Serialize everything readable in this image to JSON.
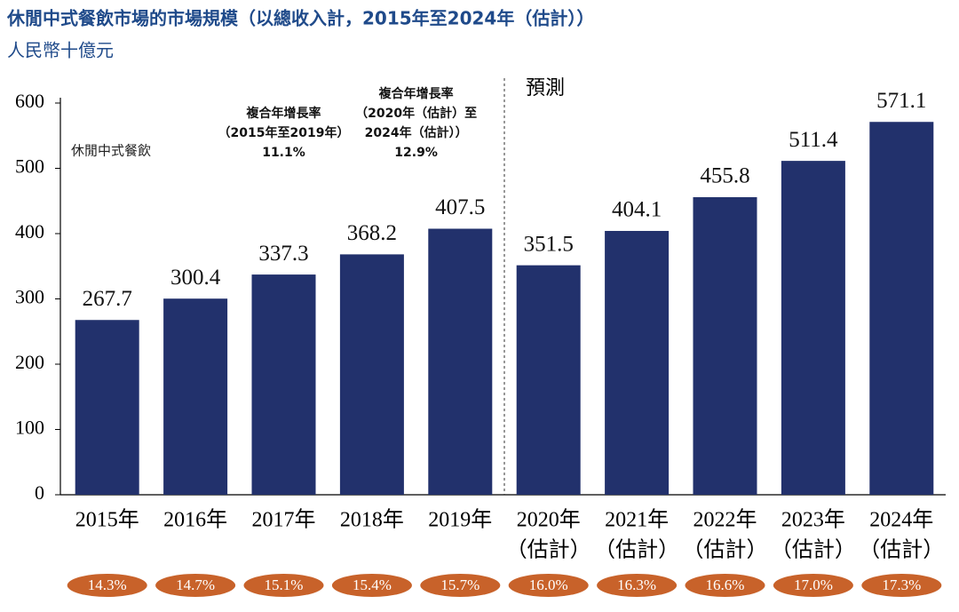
{
  "chart_data": {
    "type": "bar",
    "title": "休閒中式餐飲市場的市場規模（以總收入計，2015年至2024年（估計））",
    "subtitle": "人民幣十億元",
    "categories": [
      [
        "2015年"
      ],
      [
        "2016年"
      ],
      [
        "2017年"
      ],
      [
        "2018年"
      ],
      [
        "2019年"
      ],
      [
        "2020年",
        "（估計）"
      ],
      [
        "2021年",
        "（估計）"
      ],
      [
        "2022年",
        "（估計）"
      ],
      [
        "2023年",
        "（估計）"
      ],
      [
        "2024年",
        "（估計）"
      ]
    ],
    "values": [
      267.7,
      300.4,
      337.3,
      368.2,
      407.5,
      351.5,
      404.1,
      455.8,
      511.4,
      571.1
    ],
    "color": "#22316c",
    "ylim": [
      0,
      600
    ],
    "yticks": [
      0,
      100,
      200,
      300,
      400,
      500,
      600
    ],
    "grid": false,
    "series_label": "休閒中式餐飲",
    "forecast_label": "預測",
    "forecast_start_index": 5,
    "cagr_annotations": [
      {
        "lines": [
          "複合年增長率",
          "（2015年至2019年）",
          "11.1%"
        ]
      },
      {
        "lines": [
          "複合年增長率",
          "（2020年（估計）至",
          "2024年（估計））",
          "12.9%"
        ]
      }
    ],
    "growth": {
      "values": [
        14.3,
        14.7,
        15.1,
        15.4,
        15.7,
        16.0,
        16.3,
        16.6,
        17.0,
        17.3
      ],
      "value_labels": [
        "14.3%",
        "14.7%",
        "15.1%",
        "15.4%",
        "15.7%",
        "16.0%",
        "16.3%",
        "16.6%",
        "17.0%",
        "17.3%"
      ],
      "color": "#c8622a"
    }
  }
}
